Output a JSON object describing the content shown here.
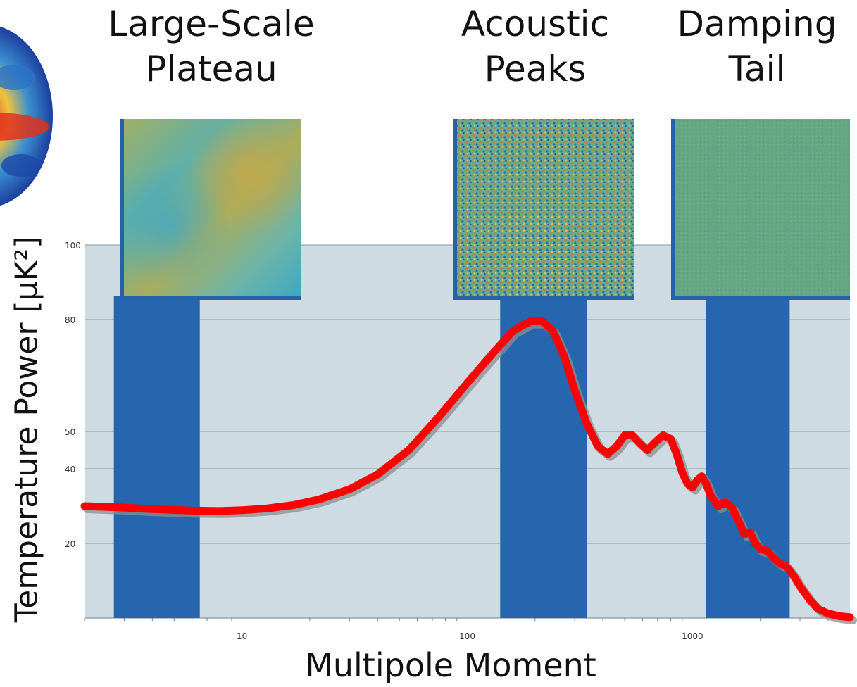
{
  "chart_data": {
    "type": "line",
    "xscale": "log",
    "xlim": [
      2,
      5000
    ],
    "ylim": [
      0,
      100
    ],
    "xlabel": "Multipole Moment",
    "ylabel": "Temperature Power [μK²]",
    "x_ticks": [
      10,
      100,
      1000
    ],
    "y_ticks": [
      20,
      40,
      50,
      80,
      100
    ],
    "grid": true,
    "regions": [
      {
        "label_line1": "Large-Scale",
        "label_line2": "Plateau",
        "x_range": [
          2.7,
          6.5
        ]
      },
      {
        "label_line1": "Acoustic",
        "label_line2": "Peaks",
        "x_range": [
          140,
          340
        ]
      },
      {
        "label_line1": "Damping",
        "label_line2": "Tail",
        "x_range": [
          1150,
          2700
        ]
      }
    ],
    "series": [
      {
        "color": "#ff0000",
        "x": [
          2,
          3,
          4,
          6,
          8,
          10,
          13,
          17,
          22,
          30,
          40,
          55,
          75,
          100,
          130,
          160,
          190,
          215,
          240,
          270,
          300,
          340,
          380,
          420,
          460,
          500,
          540,
          580,
          630,
          680,
          740,
          800,
          850,
          900,
          950,
          1000,
          1050,
          1100,
          1150,
          1200,
          1300,
          1400,
          1500,
          1600,
          1700,
          1800,
          1900,
          2000,
          2150,
          2300,
          2450,
          2600,
          2800,
          3000,
          3300,
          3600,
          4000,
          4500,
          5000
        ],
        "y": [
          30,
          29.6,
          29.2,
          28.8,
          28.7,
          28.9,
          29.4,
          30.3,
          31.8,
          34.5,
          38.5,
          45,
          54,
          63,
          71,
          77,
          79.5,
          79.5,
          77,
          70,
          61,
          52,
          46,
          44,
          46,
          49,
          49,
          47,
          45,
          47,
          49,
          48,
          44,
          39,
          36,
          35,
          37,
          38,
          36,
          33,
          30,
          31,
          29.5,
          26,
          22.5,
          23,
          20,
          18.5,
          18,
          16,
          14.5,
          14,
          11.5,
          8.5,
          5,
          2.5,
          1.2,
          0.5,
          0.2
        ]
      }
    ]
  }
}
